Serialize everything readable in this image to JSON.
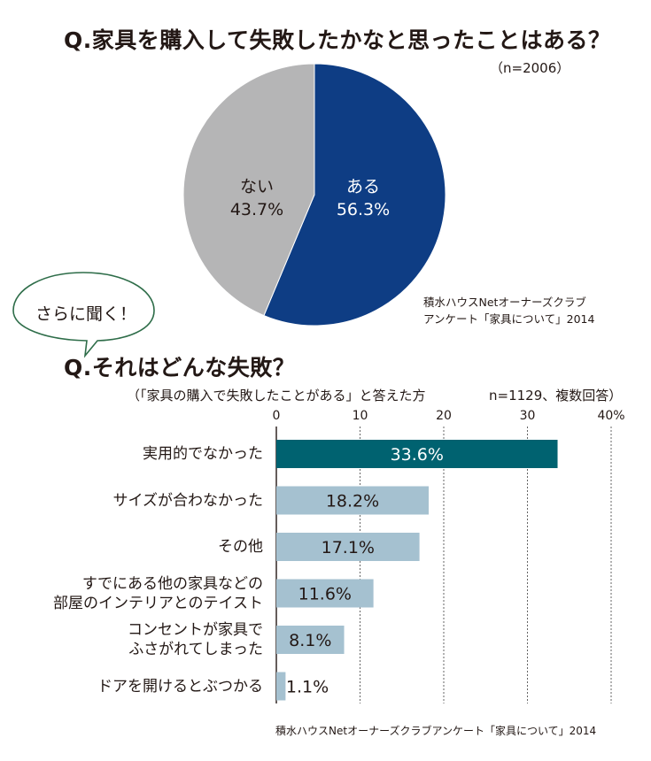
{
  "question1": {
    "title": "Q.家具を購入して失敗したかなと思ったことはある？",
    "sample": "（n=2006）",
    "source_line1": "積水ハウスNetオーナーズクラブ",
    "source_line2": "アンケート「家具について」2014"
  },
  "bubble": {
    "text": "さらに聞く！"
  },
  "question2": {
    "title": "Q.それはどんな失敗？",
    "note_left": "（「家具の購入で失敗したことがある」と答えた方",
    "note_right": "n=1129、複数回答）",
    "source": "積水ハウスNetオーナーズクラブアンケート「家具について」2014"
  },
  "chart_data": [
    {
      "type": "pie",
      "slices": [
        {
          "label": "ある",
          "value": 56.3,
          "value_label": "56.3%",
          "color": "#0e3d84",
          "text_color": "#ffffff"
        },
        {
          "label": "ない",
          "value": 43.7,
          "value_label": "43.7%",
          "color": "#b5b5b6",
          "text_color": "#231815"
        }
      ]
    },
    {
      "type": "bar",
      "orientation": "horizontal",
      "xlim": [
        0,
        40
      ],
      "tick_labels": [
        "0",
        "10",
        "20",
        "30",
        "40%"
      ],
      "grid": true,
      "categories": [
        [
          "実用的でなかった"
        ],
        [
          "サイズが合わなかった"
        ],
        [
          "その他"
        ],
        [
          "すでにある他の家具などの",
          "部屋のインテリアとのテイスト"
        ],
        [
          "コンセントが家具で",
          "ふさがれてしまった"
        ],
        [
          "ドアを開けるとぶつかる"
        ]
      ],
      "values": [
        33.6,
        18.2,
        17.1,
        11.6,
        8.1,
        1.1
      ],
      "value_labels": [
        "33.6%",
        "18.2%",
        "17.1%",
        "11.6%",
        "8.1%",
        "1.1%"
      ],
      "highlight_color": "#006270",
      "bar_color": "#a5c1d0"
    }
  ]
}
